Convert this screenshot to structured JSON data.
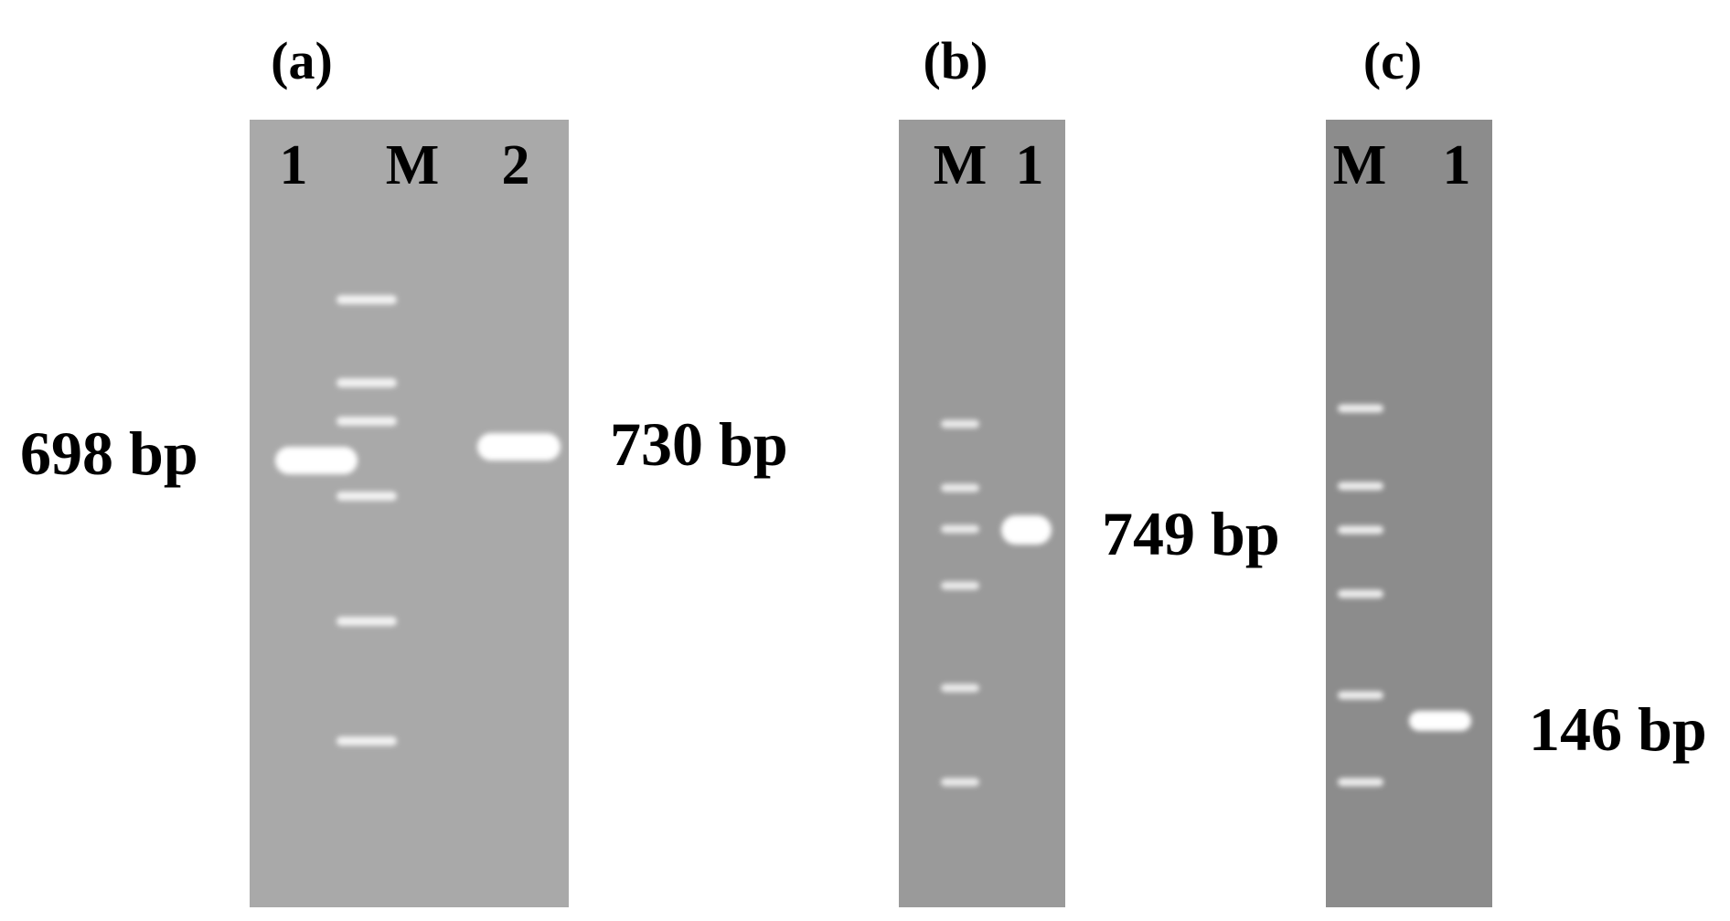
{
  "panels": [
    {
      "label": "(a)",
      "lanes": [
        "1",
        "M",
        "2"
      ],
      "sizes": [
        "698 bp",
        "730 bp"
      ],
      "gel_color": "#a9a9a9"
    },
    {
      "label": "(b)",
      "lanes": [
        "M",
        "1"
      ],
      "sizes": [
        "749 bp"
      ],
      "gel_color": "#9a9a9a"
    },
    {
      "label": "(c)",
      "lanes": [
        "M",
        "1"
      ],
      "sizes": [
        "146 bp"
      ],
      "gel_color": "#8c8c8c"
    }
  ]
}
